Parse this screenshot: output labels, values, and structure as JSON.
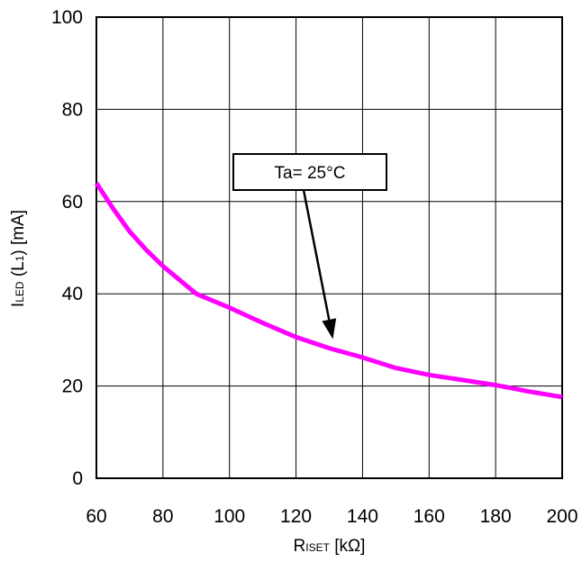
{
  "chart_data": {
    "type": "line",
    "xlabel": {
      "main": "R",
      "sub": "ISET",
      "rest": " [kΩ]"
    },
    "ylabel": {
      "main": "I",
      "sub": "LED",
      "mid": " (L",
      "sub2": "1",
      "rest": ") [mA]"
    },
    "xlim": [
      60,
      200
    ],
    "ylim": [
      0,
      100
    ],
    "x_ticks": [
      60,
      80,
      100,
      120,
      140,
      160,
      180,
      200
    ],
    "y_ticks": [
      0,
      20,
      40,
      60,
      80,
      100
    ],
    "grid": true,
    "series": [
      {
        "color": "#ff00ff",
        "x": [
          60,
          65,
          70,
          75,
          80,
          85,
          90,
          95,
          100,
          110,
          120,
          130,
          140,
          150,
          160,
          170,
          180,
          190,
          200
        ],
        "y": [
          64,
          58.5,
          53.5,
          49.5,
          46,
          43,
          40,
          38.5,
          37,
          33.7,
          30.6,
          28.2,
          26.2,
          23.9,
          22.4,
          21.3,
          20.2,
          18.8,
          17.6
        ]
      }
    ],
    "annotation": {
      "text": "Ta= 25°C",
      "arrow_to": [
        130,
        29
      ]
    }
  }
}
